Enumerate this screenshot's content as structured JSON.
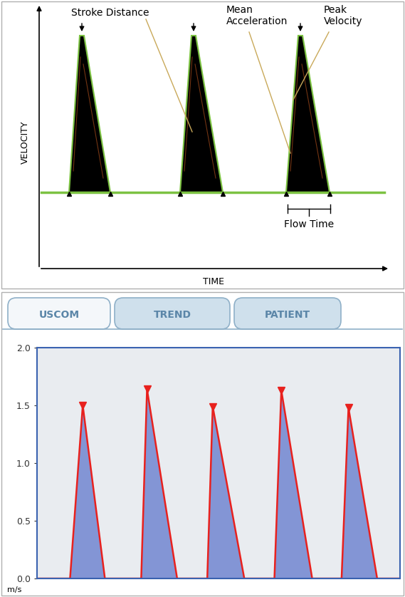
{
  "diagram": {
    "x_label": "TIME",
    "y_label": "VELOCITY",
    "labels": [
      "Stroke Distance",
      "Mean Acceleration",
      "Peak Velocity",
      "Flow Time"
    ]
  },
  "tabs": [
    "USCOM",
    "TREND",
    "PATIENT"
  ],
  "chart_data": {
    "type": "line",
    "y_label": "m/s",
    "xlim": [
      0,
      100
    ],
    "ylim": [
      0,
      2
    ],
    "yticks": [
      {
        "value": 0,
        "label": "0.0"
      },
      {
        "value": 0.5,
        "label": "0.5"
      },
      {
        "value": 1,
        "label": "1.0"
      },
      {
        "value": 1.5,
        "label": "1.5"
      },
      {
        "value": 2,
        "label": "2.0"
      }
    ],
    "tick_labels": "y",
    "color": "#e8211e",
    "marker": "v",
    "beats": [
      {
        "start": 9.1,
        "peak_time": 12.6,
        "peak": 1.5,
        "end": 18.7
      },
      {
        "start": 28.7,
        "peak_time": 30.3,
        "peak": 1.64,
        "end": 38.6
      },
      {
        "start": 46.9,
        "peak_time": 48.4,
        "peak": 1.49,
        "end": 57.1
      },
      {
        "start": 65.4,
        "peak_time": 67.3,
        "peak": 1.63,
        "end": 75.8
      },
      {
        "start": 83.9,
        "peak_time": 85.8,
        "peak": 1.48,
        "end": 93.7
      }
    ]
  }
}
